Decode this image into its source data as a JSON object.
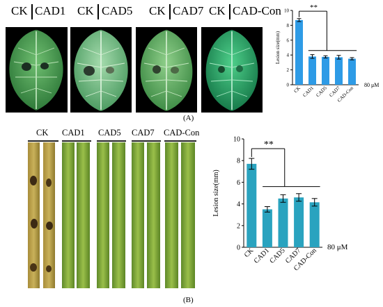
{
  "panel_a": {
    "labels": [
      "CK",
      "CAD1",
      "CK",
      "CAD5",
      "CK",
      "CAD7",
      "CK",
      "CAD-Con"
    ],
    "caption": "(A)",
    "unit_note": "80 μM"
  },
  "panel_b": {
    "labels": [
      "CK",
      "CAD1",
      "CAD5",
      "CAD7",
      "CAD-Con"
    ],
    "caption": "(B)",
    "unit_note": "80 μM"
  },
  "colors": {
    "bar_a": "#2e9be6",
    "bar_b": "#2aa3bf",
    "leaf_dark": "#1f5a2a",
    "leaf_light": "#9fd6a3"
  },
  "chart_data": [
    {
      "type": "bar",
      "title": "",
      "xlabel": "",
      "ylabel": "Lesion size(mm)",
      "categories": [
        "CK",
        "CAD1",
        "CAD5",
        "CAD7",
        "CAD-Con"
      ],
      "values": [
        8.7,
        3.8,
        3.75,
        3.7,
        3.5
      ],
      "errors": [
        0.2,
        0.25,
        0.15,
        0.25,
        0.15
      ],
      "ylim": [
        0,
        10
      ],
      "yticks": [
        "0",
        "2",
        "4",
        "6",
        "8",
        "10"
      ],
      "significance": "**",
      "grid": false
    },
    {
      "type": "bar",
      "title": "",
      "xlabel": "",
      "ylabel": "Lesion size(mm)",
      "categories": [
        "CK",
        "CAD1",
        "CAD5",
        "CAD7",
        "CAD-Con"
      ],
      "values": [
        7.7,
        3.5,
        4.5,
        4.6,
        4.15
      ],
      "errors": [
        0.5,
        0.25,
        0.35,
        0.35,
        0.35
      ],
      "ylim": [
        0,
        10
      ],
      "yticks": [
        "0",
        "2",
        "4",
        "6",
        "8",
        "10"
      ],
      "significance": "**",
      "grid": false
    }
  ]
}
